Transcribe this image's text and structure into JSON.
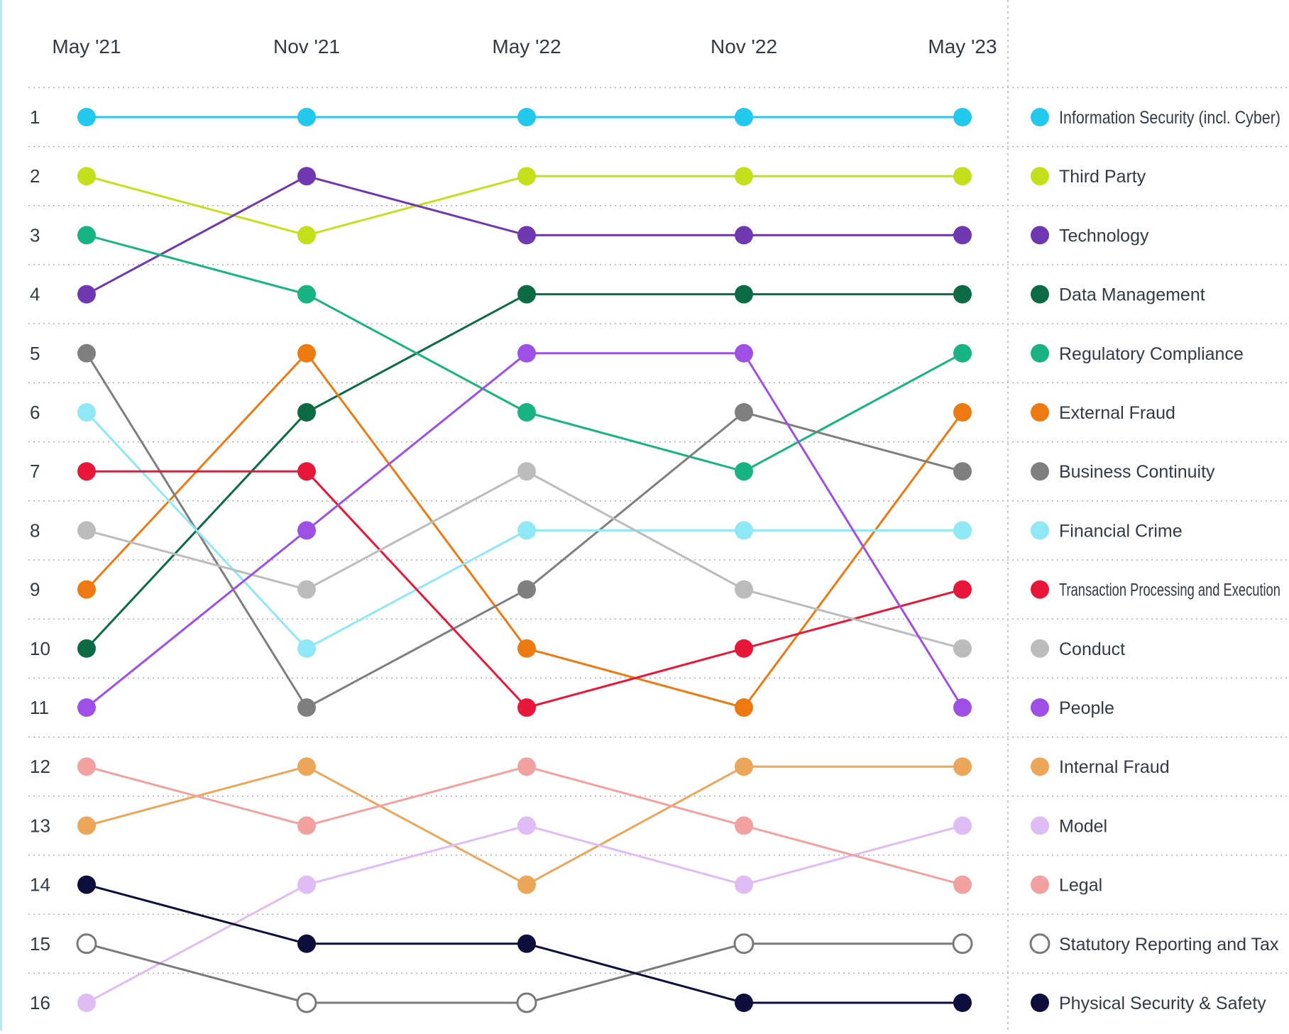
{
  "chart_data": {
    "type": "line",
    "title": "",
    "xlabel": "",
    "ylabel": "",
    "categories": [
      "May '21",
      "Nov '21",
      "May '22",
      "Nov '22",
      "May '23"
    ],
    "rank_labels": [
      "1",
      "2",
      "3",
      "4",
      "5",
      "6",
      "7",
      "8",
      "9",
      "10",
      "11",
      "12",
      "13",
      "14",
      "15",
      "16"
    ],
    "ylim": [
      1,
      16
    ],
    "y_inverted": true,
    "grid": true,
    "legend_position": "right",
    "series": [
      {
        "name": "Information Security (incl. Cyber)",
        "color": "#22c9ec",
        "values": [
          1,
          1,
          1,
          1,
          1
        ]
      },
      {
        "name": "Third Party",
        "color": "#c4e01c",
        "values": [
          2,
          3,
          2,
          2,
          2
        ]
      },
      {
        "name": "Technology",
        "color": "#7038b0",
        "values": [
          4,
          2,
          3,
          3,
          3
        ]
      },
      {
        "name": "Data Management",
        "color": "#0c6b45",
        "values": [
          10,
          6,
          4,
          4,
          4
        ]
      },
      {
        "name": "Regulatory Compliance",
        "color": "#17b481",
        "values": [
          3,
          4,
          6,
          7,
          5
        ]
      },
      {
        "name": "External Fraud",
        "color": "#ec7a10",
        "values": [
          9,
          5,
          10,
          11,
          6
        ]
      },
      {
        "name": "Business Continuity",
        "color": "#7f7f7f",
        "values": [
          5,
          11,
          9,
          6,
          7
        ]
      },
      {
        "name": "Financial Crime",
        "color": "#8ee8f6",
        "values": [
          6,
          10,
          8,
          8,
          8
        ]
      },
      {
        "name": "Transaction Processing and Execution",
        "color": "#e8173a",
        "values": [
          7,
          7,
          11,
          10,
          9
        ]
      },
      {
        "name": "Conduct",
        "color": "#bcbcbc",
        "values": [
          8,
          9,
          7,
          9,
          10
        ]
      },
      {
        "name": "People",
        "color": "#9d4fe6",
        "values": [
          11,
          8,
          5,
          5,
          11
        ]
      },
      {
        "name": "Internal Fraud",
        "color": "#eca65a",
        "values": [
          13,
          12,
          14,
          12,
          12
        ]
      },
      {
        "name": "Model",
        "color": "#e0bcf5",
        "values": [
          16,
          14,
          13,
          14,
          13
        ]
      },
      {
        "name": "Legal",
        "color": "#f2a1a1",
        "values": [
          12,
          13,
          12,
          13,
          14
        ]
      },
      {
        "name": "Statutory Reporting and Tax",
        "color": "#ffffff",
        "stroke": "#7a7a7a",
        "values": [
          15,
          16,
          16,
          15,
          15
        ]
      },
      {
        "name": "Physical Security & Safety",
        "color": "#0e0e3c",
        "values": [
          14,
          15,
          15,
          16,
          16
        ]
      }
    ]
  }
}
